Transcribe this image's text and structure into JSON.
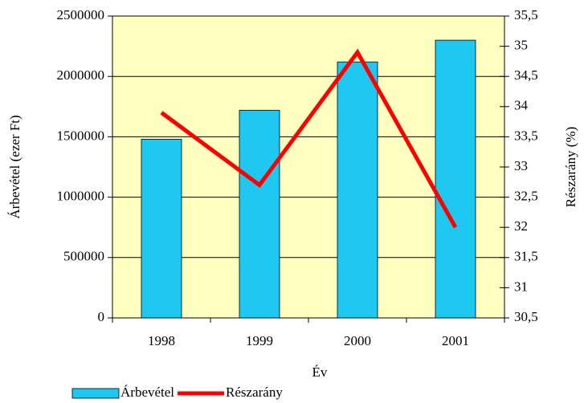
{
  "chart_data": {
    "type": "bar",
    "categories": [
      "1998",
      "1999",
      "2000",
      "2001"
    ],
    "xlabel": "Év",
    "ylabel": "Árbevétel (ezer Ft)",
    "y2label": "Részarány (%)",
    "series": [
      {
        "name": "Árbevétel",
        "type": "bar",
        "color": "#1ec8f0",
        "values": [
          1480000,
          1720000,
          2120000,
          2300000
        ]
      },
      {
        "name": "Részarány",
        "type": "line",
        "axis": "y2",
        "color": "#ff0000",
        "values": [
          33.9,
          32.7,
          34.9,
          32.0
        ]
      }
    ],
    "ylim": [
      0,
      2500000
    ],
    "yticks": [
      0,
      500000,
      1000000,
      1500000,
      2000000,
      2500000
    ],
    "y2lim": [
      30.5,
      35.5
    ],
    "y2ticks": [
      {
        "value": 30.5,
        "label": "30,5"
      },
      31,
      {
        "value": 31.5,
        "label": "31,5"
      },
      32,
      {
        "value": 32.5,
        "label": "32,5"
      },
      33,
      {
        "value": 33.5,
        "label": "33,5"
      },
      34,
      {
        "value": 34.5,
        "label": "34,5"
      },
      35,
      {
        "value": 35.5,
        "label": "35,5"
      }
    ],
    "grid": true,
    "background": "#ffffc0",
    "legend": "bottom-left"
  }
}
